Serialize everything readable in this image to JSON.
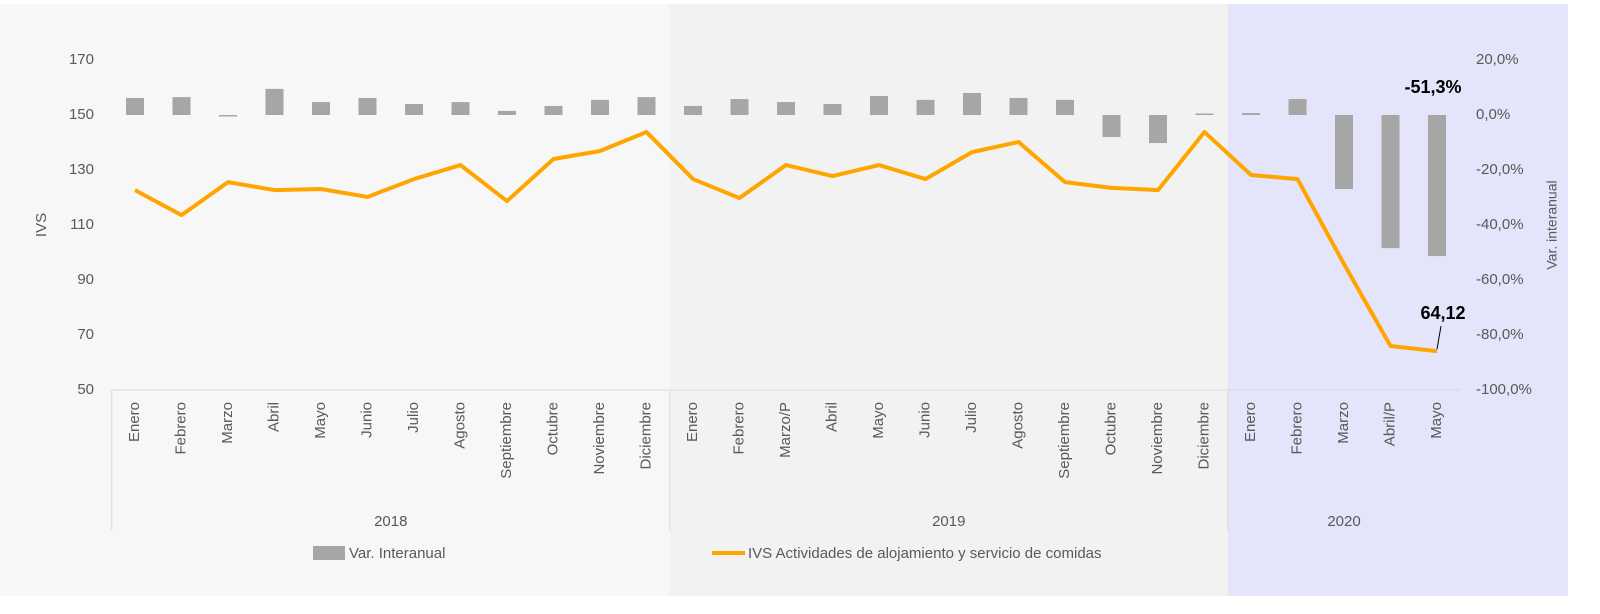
{
  "chart_data": {
    "type": "bar-line",
    "categories": [
      "Enero",
      "Febrero",
      "Marzo",
      "Abril",
      "Mayo",
      "Junio",
      "Julio",
      "Agosto",
      "Septiembre",
      "Octubre",
      "Noviembre",
      "Diciembre",
      "Enero",
      "Febrero",
      "Marzo/P",
      "Abril",
      "Mayo",
      "Junio",
      "Julio",
      "Agosto",
      "Septiembre",
      "Octubre",
      "Noviembre",
      "Diciembre",
      "Enero",
      "Febrero",
      "Marzo",
      "Abril/P",
      "Mayo"
    ],
    "x_groups": [
      {
        "label": "2018",
        "count": 12,
        "color": "#f7f7f7"
      },
      {
        "label": "2019",
        "count": 12,
        "color": "#f2f2f2"
      },
      {
        "label": "2020",
        "count": 5,
        "color": "#e4e4fa"
      }
    ],
    "ylabel": "IVS",
    "y2label": "Var. interanual",
    "ylim": [
      50,
      170
    ],
    "yticks": [
      50,
      70,
      90,
      110,
      130,
      150,
      170
    ],
    "y2lim": [
      -100,
      20
    ],
    "y2ticks": [
      {
        "value": -100,
        "label": "-100,0%"
      },
      {
        "value": -80,
        "label": "-80,0%"
      },
      {
        "value": -60,
        "label": "-60,0%"
      },
      {
        "value": -40,
        "label": "-40,0%"
      },
      {
        "value": -20,
        "label": "-20,0%"
      },
      {
        "value": 0,
        "label": "0,0%"
      },
      {
        "value": 20,
        "label": "20,0%"
      }
    ],
    "series": [
      {
        "name": "Var. Interanual",
        "type": "bar",
        "axis": "y2",
        "color": "#a6a6a6",
        "values": [
          6.2,
          6.5,
          -0.5,
          9.5,
          4.7,
          6.2,
          4.0,
          4.7,
          1.5,
          3.3,
          5.5,
          6.5,
          3.3,
          5.8,
          4.7,
          4.0,
          6.9,
          5.5,
          8.0,
          6.2,
          5.5,
          -8.0,
          -10.2,
          0.4,
          0.7,
          5.8,
          -26.9,
          -48.4,
          -51.3
        ],
        "value_labels": [
          null,
          null,
          null,
          null,
          null,
          null,
          null,
          null,
          null,
          null,
          null,
          null,
          null,
          null,
          null,
          null,
          null,
          null,
          null,
          null,
          null,
          null,
          null,
          null,
          null,
          null,
          null,
          null,
          "-51,3%"
        ]
      },
      {
        "name": "IVS Actividades de alojamiento y servicio de comidas",
        "type": "line",
        "color": "#ffa500",
        "values": [
          122.7,
          113.6,
          125.6,
          122.7,
          123.1,
          120.2,
          126.7,
          131.8,
          118.7,
          134.0,
          136.9,
          143.8,
          126.7,
          119.8,
          131.8,
          127.8,
          131.8,
          126.7,
          136.5,
          140.2,
          125.6,
          123.5,
          122.7,
          143.8,
          128.2,
          126.7,
          95.8,
          66.0,
          64.12
        ],
        "value_labels": [
          null,
          null,
          null,
          null,
          null,
          null,
          null,
          null,
          null,
          null,
          null,
          null,
          null,
          null,
          null,
          null,
          null,
          null,
          null,
          null,
          null,
          null,
          null,
          null,
          null,
          null,
          null,
          null,
          "64,12"
        ]
      }
    ]
  }
}
